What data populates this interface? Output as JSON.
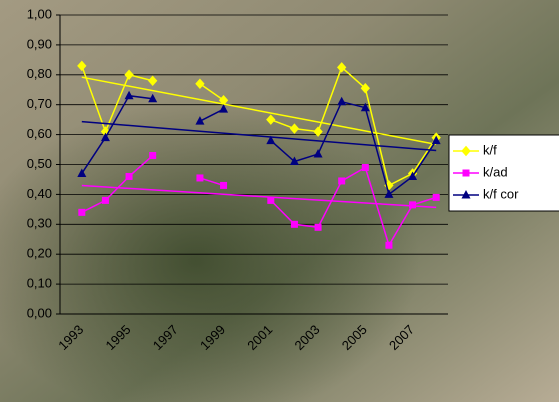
{
  "chart_data": {
    "type": "line",
    "categories": [
      "1993",
      null,
      "1995",
      null,
      "1997",
      null,
      "1999",
      null,
      "2001",
      null,
      "2003",
      null,
      "2005",
      null,
      "2007",
      null
    ],
    "series": [
      {
        "name": "k/f",
        "color": "#ffff00",
        "marker": "diamond",
        "values": [
          0.83,
          0.61,
          0.8,
          0.78,
          null,
          0.77,
          0.715,
          null,
          0.65,
          0.62,
          0.61,
          0.825,
          0.755,
          0.43,
          0.47,
          0.59
        ]
      },
      {
        "name": "k/ad",
        "color": "#ff00ff",
        "marker": "square",
        "values": [
          0.34,
          0.38,
          0.46,
          0.53,
          null,
          0.455,
          0.43,
          null,
          0.38,
          0.3,
          0.29,
          0.445,
          0.49,
          0.23,
          0.365,
          0.39
        ]
      },
      {
        "name": "k/f cor",
        "color": "#000080",
        "marker": "triangle",
        "values": [
          0.47,
          0.59,
          0.73,
          0.72,
          null,
          0.645,
          0.685,
          null,
          0.58,
          0.51,
          0.535,
          0.71,
          0.69,
          0.4,
          0.46,
          0.58
        ]
      }
    ],
    "trendline": true,
    "ylim": [
      0,
      1
    ],
    "yticks": [
      {
        "value": 0,
        "label": "0,00"
      },
      {
        "value": 0.1,
        "label": "0,10"
      },
      {
        "value": 0.2,
        "label": "0,20"
      },
      {
        "value": 0.3,
        "label": "0,30"
      },
      {
        "value": 0.4,
        "label": "0,40"
      },
      {
        "value": 0.5,
        "label": "0,50"
      },
      {
        "value": 0.6,
        "label": "0,60"
      },
      {
        "value": 0.7,
        "label": "0,70"
      },
      {
        "value": 0.8,
        "label": "0,80"
      },
      {
        "value": 0.9,
        "label": "0,90"
      },
      {
        "value": 1,
        "label": "1,00"
      }
    ],
    "grid": true,
    "legend": "right"
  }
}
